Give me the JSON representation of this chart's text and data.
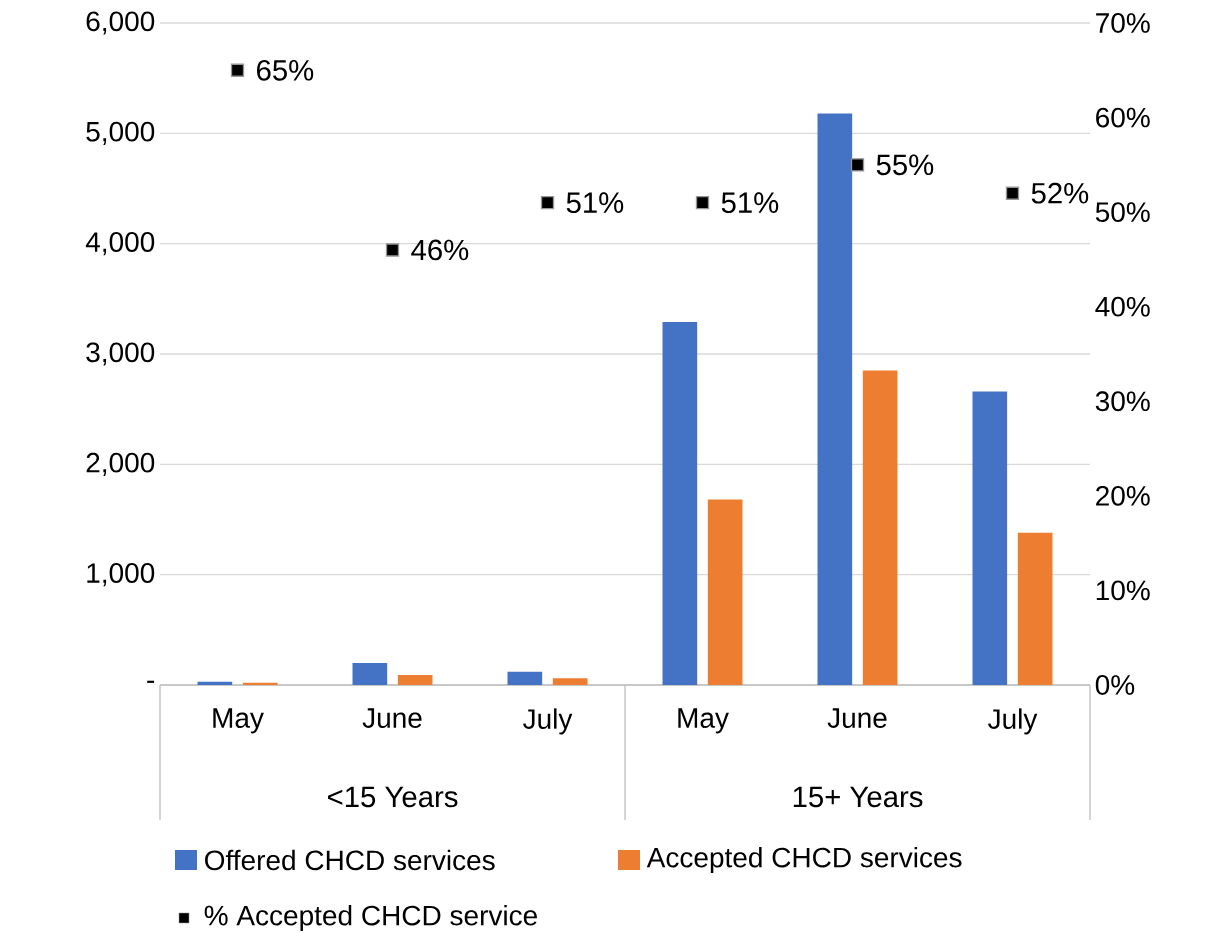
{
  "chart_data": {
    "type": "bar",
    "categories": [
      "May",
      "June",
      "July",
      "May",
      "June",
      "July"
    ],
    "annotations": [
      "<15 Years",
      "15+ Years"
    ],
    "series": [
      {
        "name": "Offered CHCD services",
        "color": "#4472c4",
        "values": [
          30,
          200,
          120,
          3290,
          5180,
          2660
        ]
      },
      {
        "name": "Accepted CHCD services",
        "color": "#ed7d31",
        "values": [
          20,
          90,
          60,
          1680,
          2850,
          1380
        ]
      },
      {
        "name": "% Accepted CHCD service",
        "type": "scatter",
        "axis": "y2",
        "color": "#000000",
        "marker": "square",
        "values": [
          65,
          46,
          51,
          51,
          55,
          52
        ],
        "value_labels": [
          "65%",
          "46%",
          "51%",
          "51%",
          "55%",
          "52%"
        ]
      }
    ],
    "ylim": [
      0,
      6000
    ],
    "yticks": [
      {
        "value": 0,
        "label": "-"
      },
      {
        "value": 1000,
        "label": "1,000"
      },
      {
        "value": 2000,
        "label": "2,000"
      },
      {
        "value": 3000,
        "label": "3,000"
      },
      {
        "value": 4000,
        "label": "4,000"
      },
      {
        "value": 5000,
        "label": "5,000"
      },
      {
        "value": 6000,
        "label": "6,000"
      }
    ],
    "y2lim": [
      0,
      70
    ],
    "y2ticks": [
      {
        "value": 0,
        "label": "0%"
      },
      {
        "value": 10,
        "label": "10%"
      },
      {
        "value": 20,
        "label": "20%"
      },
      {
        "value": 30,
        "label": "30%"
      },
      {
        "value": 40,
        "label": "40%"
      },
      {
        "value": 50,
        "label": "50%"
      },
      {
        "value": 60,
        "label": "60%"
      },
      {
        "value": 70,
        "label": "70%"
      }
    ],
    "grid": "y",
    "legend": "bottom"
  }
}
